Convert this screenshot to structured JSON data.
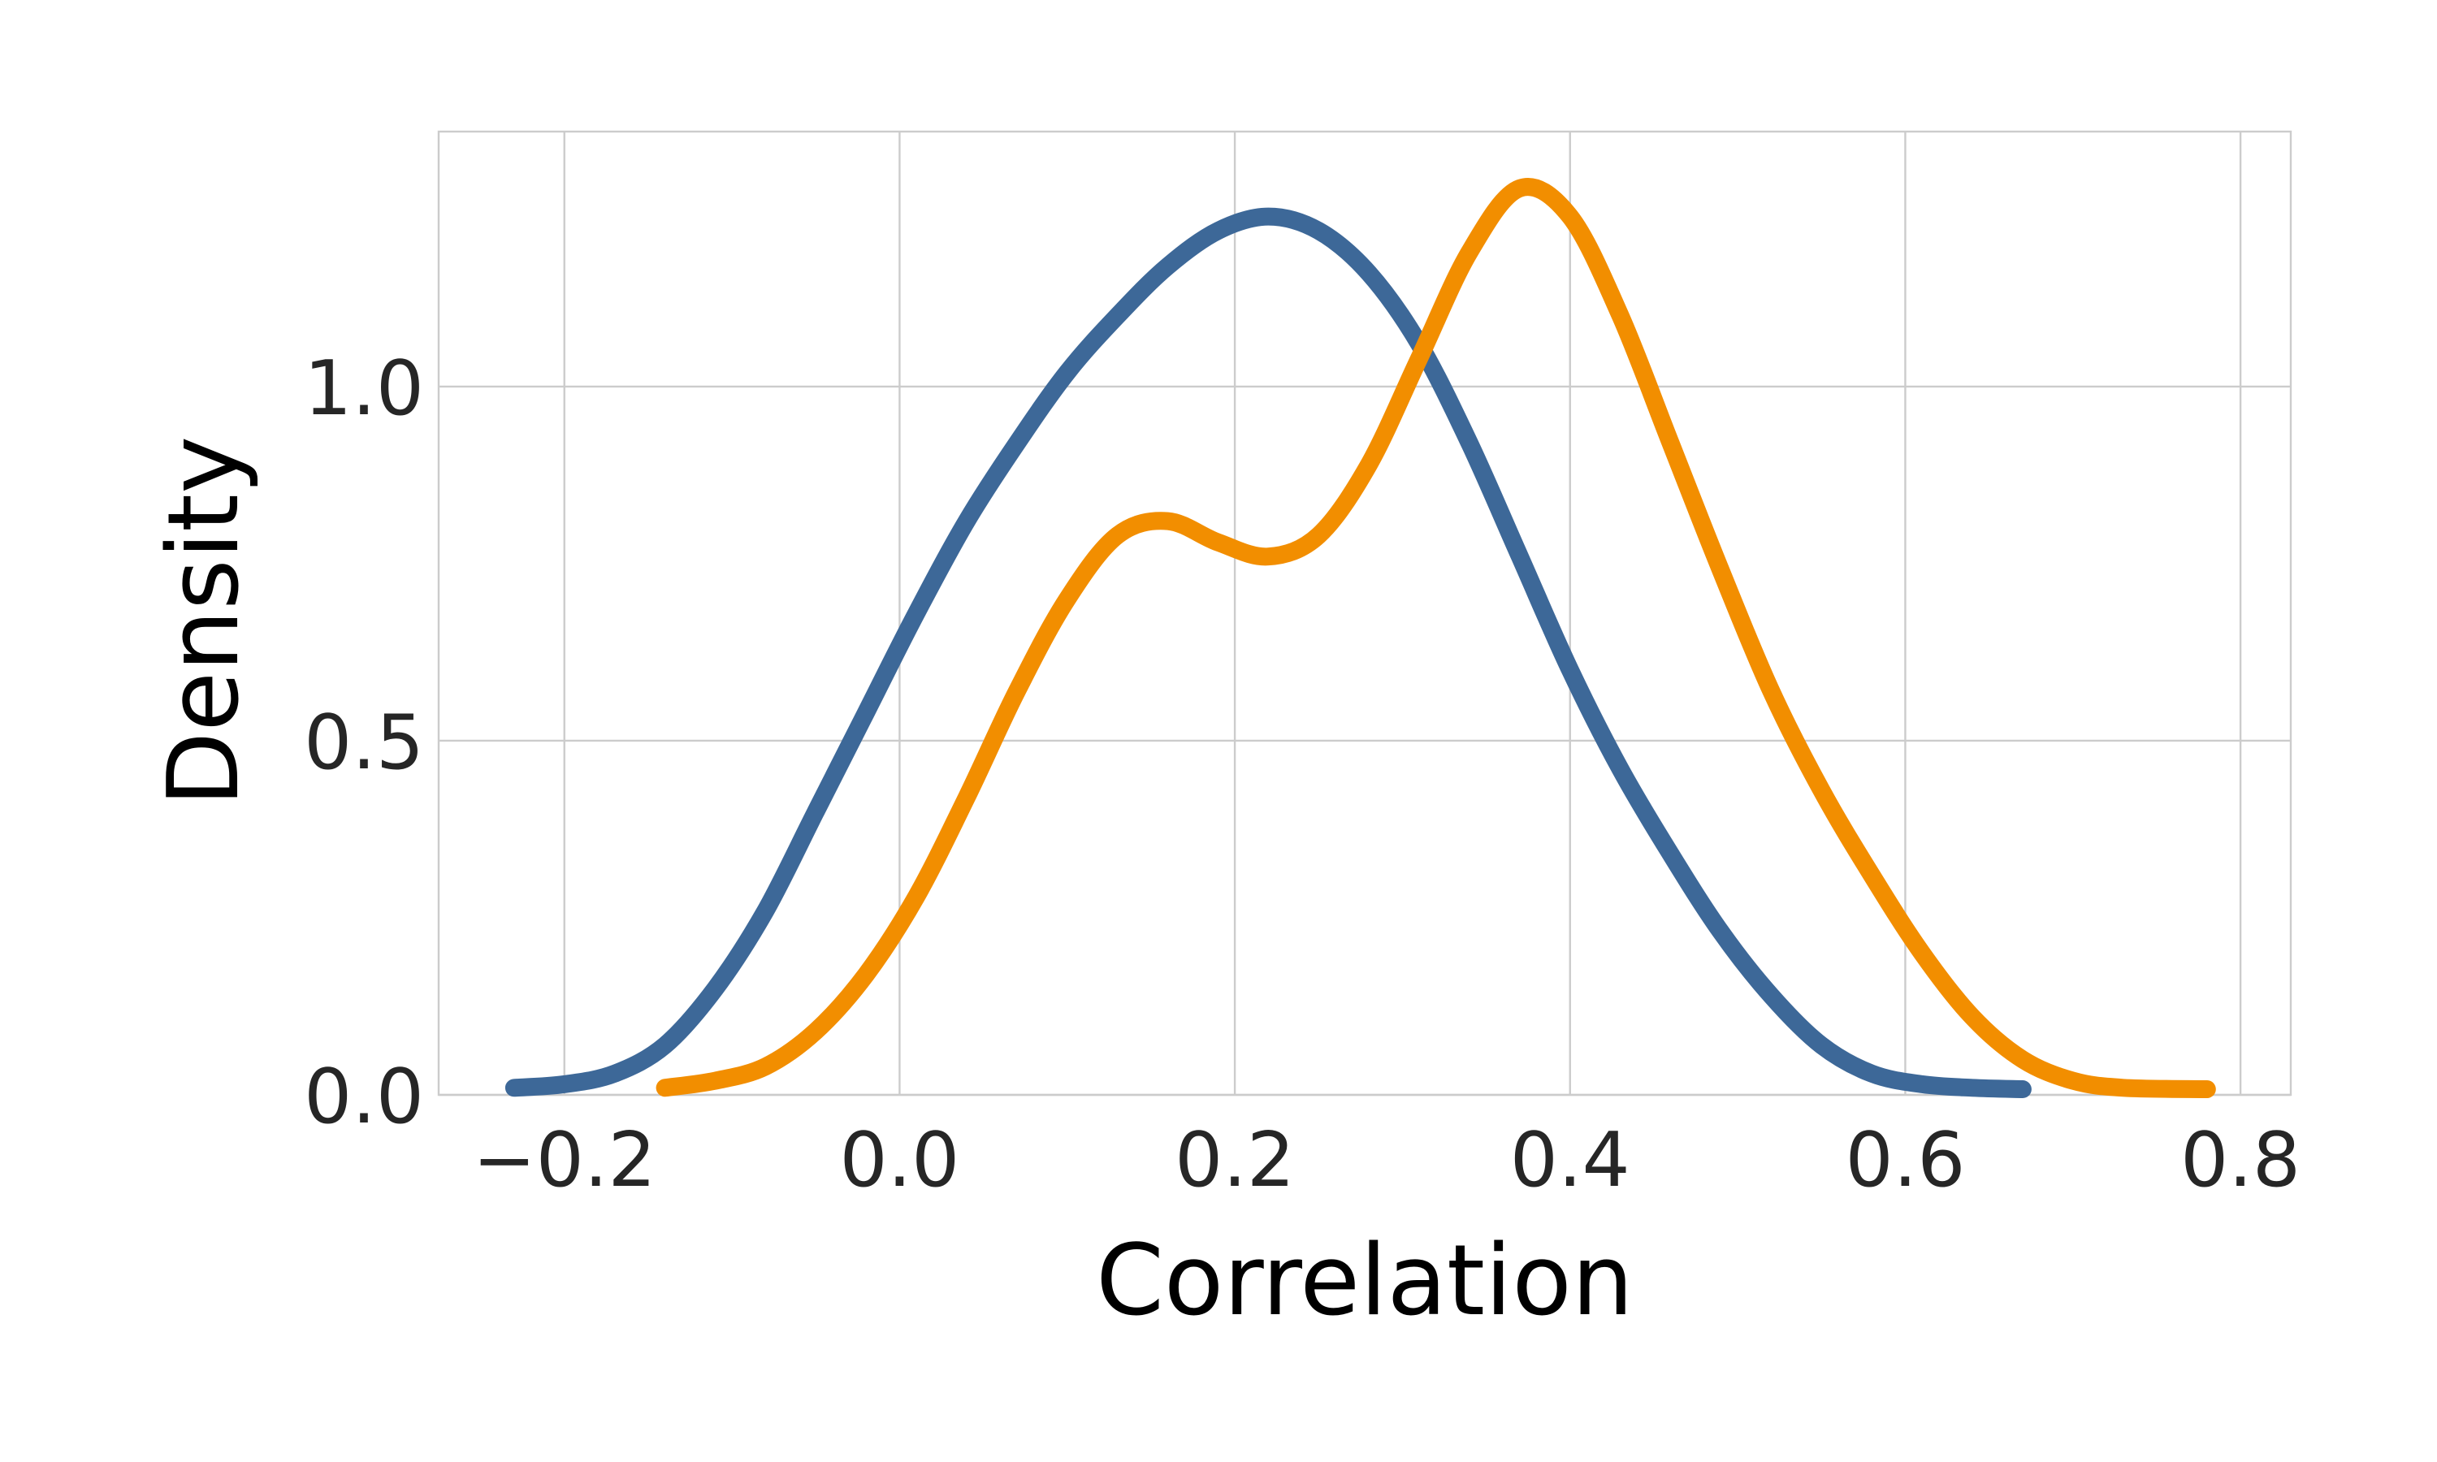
{
  "chart_data": {
    "type": "line",
    "title": "",
    "xlabel": "Correlation",
    "ylabel": "Density",
    "xlim": [
      -0.275,
      0.83
    ],
    "ylim": [
      0.0,
      1.36
    ],
    "x_ticks": [
      -0.2,
      0.0,
      0.2,
      0.4,
      0.6,
      0.8
    ],
    "x_tick_labels": [
      "−0.2",
      "0.0",
      "0.2",
      "0.4",
      "0.6",
      "0.8"
    ],
    "y_ticks": [
      0.0,
      0.5,
      1.0
    ],
    "y_tick_labels": [
      "0.0",
      "0.5",
      "1.0"
    ],
    "grid": true,
    "legend": "none",
    "series": [
      {
        "color": "#3d6898",
        "points": [
          [
            -0.23,
            0.01
          ],
          [
            -0.2,
            0.015
          ],
          [
            -0.17,
            0.03
          ],
          [
            -0.14,
            0.07
          ],
          [
            -0.11,
            0.15
          ],
          [
            -0.08,
            0.26
          ],
          [
            -0.05,
            0.4
          ],
          [
            -0.02,
            0.54
          ],
          [
            0.01,
            0.68
          ],
          [
            0.04,
            0.81
          ],
          [
            0.07,
            0.92
          ],
          [
            0.1,
            1.02
          ],
          [
            0.13,
            1.1
          ],
          [
            0.16,
            1.17
          ],
          [
            0.19,
            1.22
          ],
          [
            0.22,
            1.24
          ],
          [
            0.25,
            1.22
          ],
          [
            0.28,
            1.16
          ],
          [
            0.31,
            1.06
          ],
          [
            0.34,
            0.92
          ],
          [
            0.37,
            0.76
          ],
          [
            0.4,
            0.6
          ],
          [
            0.43,
            0.46
          ],
          [
            0.46,
            0.34
          ],
          [
            0.49,
            0.23
          ],
          [
            0.52,
            0.14
          ],
          [
            0.55,
            0.07
          ],
          [
            0.58,
            0.03
          ],
          [
            0.61,
            0.015
          ],
          [
            0.64,
            0.01
          ],
          [
            0.67,
            0.008
          ]
        ]
      },
      {
        "color": "#f28e00",
        "points": [
          [
            -0.14,
            0.01
          ],
          [
            -0.11,
            0.02
          ],
          [
            -0.08,
            0.04
          ],
          [
            -0.05,
            0.09
          ],
          [
            -0.02,
            0.17
          ],
          [
            0.01,
            0.28
          ],
          [
            0.04,
            0.42
          ],
          [
            0.07,
            0.57
          ],
          [
            0.1,
            0.7
          ],
          [
            0.13,
            0.79
          ],
          [
            0.16,
            0.81
          ],
          [
            0.19,
            0.78
          ],
          [
            0.22,
            0.76
          ],
          [
            0.25,
            0.79
          ],
          [
            0.28,
            0.89
          ],
          [
            0.31,
            1.04
          ],
          [
            0.34,
            1.19
          ],
          [
            0.37,
            1.28
          ],
          [
            0.4,
            1.24
          ],
          [
            0.43,
            1.1
          ],
          [
            0.46,
            0.92
          ],
          [
            0.49,
            0.74
          ],
          [
            0.52,
            0.57
          ],
          [
            0.55,
            0.43
          ],
          [
            0.58,
            0.31
          ],
          [
            0.61,
            0.2
          ],
          [
            0.64,
            0.11
          ],
          [
            0.67,
            0.05
          ],
          [
            0.7,
            0.02
          ],
          [
            0.73,
            0.01
          ],
          [
            0.78,
            0.008
          ]
        ]
      }
    ]
  }
}
